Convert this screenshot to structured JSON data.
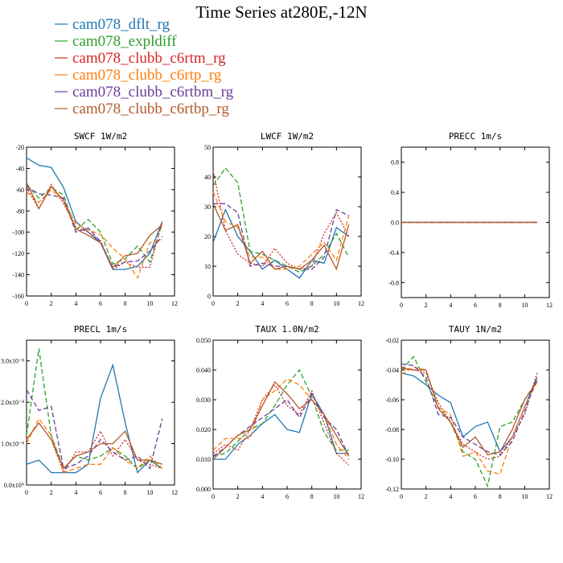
{
  "figure": {
    "title": "Time Series at280E,-12N"
  },
  "legend": [
    {
      "name": "cam078_dflt_rg",
      "color": "#1f77b4",
      "dash": "solid"
    },
    {
      "name": "cam078_expldiff",
      "color": "#2ca02c",
      "dash": "dash"
    },
    {
      "name": "cam078_clubb_c6rtm_rg",
      "color": "#d62728",
      "dash": "dot"
    },
    {
      "name": "cam078_clubb_c6rtp_rg",
      "color": "#ff7f0e",
      "dash": "dash"
    },
    {
      "name": "cam078_clubb_c6rtbm_rg",
      "color": "#6a3d9a",
      "dash": "dash"
    },
    {
      "name": "cam078_clubb_c6rtbp_rg",
      "color": "#b35a2b",
      "dash": "solid"
    }
  ],
  "chart_data": [
    {
      "type": "line",
      "title": "SWCF   1W/m2",
      "x": [
        0,
        1,
        2,
        3,
        4,
        5,
        6,
        7,
        8,
        9,
        10,
        11
      ],
      "xlim": [
        0,
        12
      ],
      "ylim": [
        -160,
        -20
      ],
      "xticks": [
        "0",
        "2",
        "4",
        "6",
        "8",
        "10",
        "12"
      ],
      "yticks": [
        "-160",
        "-140",
        "-120",
        "-100",
        "-80",
        "-60",
        "-40",
        "-20"
      ],
      "series": [
        {
          "name": "cam078_dflt_rg",
          "values": [
            -30,
            -37,
            -39,
            -58,
            -90,
            -100,
            -110,
            -135,
            -135,
            -132,
            -120,
            -90
          ]
        },
        {
          "name": "cam078_expldiff",
          "values": [
            -55,
            -68,
            -58,
            -65,
            -98,
            -88,
            -100,
            -130,
            -125,
            -113,
            -128,
            -92
          ]
        },
        {
          "name": "cam078_clubb_c6rtm_rg",
          "values": [
            -58,
            -78,
            -55,
            -73,
            -95,
            -100,
            -108,
            -135,
            -128,
            -133,
            -133,
            -90
          ]
        },
        {
          "name": "cam078_clubb_c6rtp_rg",
          "values": [
            -62,
            -72,
            -60,
            -70,
            -92,
            -98,
            -102,
            -115,
            -125,
            -143,
            -110,
            -107
          ]
        },
        {
          "name": "cam078_clubb_c6rtbm_rg",
          "values": [
            -57,
            -64,
            -65,
            -68,
            -100,
            -96,
            -109,
            -133,
            -128,
            -127,
            -118,
            -104
          ]
        },
        {
          "name": "cam078_clubb_c6rtbp_rg",
          "values": [
            -53,
            -78,
            -57,
            -70,
            -97,
            -103,
            -110,
            -133,
            -122,
            -120,
            -103,
            -93
          ]
        }
      ]
    },
    {
      "type": "line",
      "title": "LWCF   1W/m2",
      "x": [
        0,
        1,
        2,
        3,
        4,
        5,
        6,
        7,
        8,
        9,
        10,
        11
      ],
      "xlim": [
        0,
        12
      ],
      "ylim": [
        0,
        50
      ],
      "xticks": [
        "0",
        "2",
        "4",
        "6",
        "8",
        "10",
        "12"
      ],
      "yticks": [
        "0",
        "10",
        "20",
        "30",
        "40",
        "50"
      ],
      "series": [
        {
          "name": "cam078_dflt_rg",
          "values": [
            18,
            29,
            20,
            15,
            9,
            12,
            9,
            6,
            12,
            11,
            23,
            20
          ]
        },
        {
          "name": "cam078_expldiff",
          "values": [
            37,
            43,
            38,
            15,
            14,
            12,
            10,
            8,
            10,
            14,
            21,
            13
          ]
        },
        {
          "name": "cam078_clubb_c6rtm_rg",
          "values": [
            42,
            22,
            14,
            11,
            10,
            16,
            11,
            9,
            10,
            21,
            28,
            20
          ]
        },
        {
          "name": "cam078_clubb_c6rtp_rg",
          "values": [
            35,
            25,
            23,
            13,
            13,
            9,
            9,
            10,
            14,
            18,
            12,
            27
          ]
        },
        {
          "name": "cam078_clubb_c6rtbm_rg",
          "values": [
            31,
            31,
            28,
            10,
            11,
            10,
            10,
            9,
            9,
            13,
            29,
            27
          ]
        },
        {
          "name": "cam078_clubb_c6rtbp_rg",
          "values": [
            31,
            22,
            24,
            11,
            15,
            9,
            10,
            9,
            12,
            17,
            9,
            24
          ]
        }
      ]
    },
    {
      "type": "line",
      "title": "PRECC   1m/s",
      "x": [
        0,
        1,
        2,
        3,
        4,
        5,
        6,
        7,
        8,
        9,
        10,
        11
      ],
      "xlim": [
        0,
        12
      ],
      "ylim": [
        -1,
        1
      ],
      "xticks": [
        "0",
        "2",
        "4",
        "6",
        "8",
        "10",
        "12"
      ],
      "yticks": [
        "-0.8",
        "-0.4",
        "0.0",
        "0.4",
        "0.8"
      ],
      "series": [
        {
          "name": "cam078_dflt_rg",
          "values": [
            0,
            0,
            0,
            0,
            0,
            0,
            0,
            0,
            0,
            0,
            0,
            0
          ]
        },
        {
          "name": "cam078_expldiff",
          "values": [
            0,
            0,
            0,
            0,
            0,
            0,
            0,
            0,
            0,
            0,
            0,
            0
          ]
        },
        {
          "name": "cam078_clubb_c6rtm_rg",
          "values": [
            0,
            0,
            0,
            0,
            0,
            0,
            0,
            0,
            0,
            0,
            0,
            0
          ]
        },
        {
          "name": "cam078_clubb_c6rtp_rg",
          "values": [
            0,
            0,
            0,
            0,
            0,
            0,
            0,
            0,
            0,
            0,
            0,
            0
          ]
        },
        {
          "name": "cam078_clubb_c6rtbm_rg",
          "values": [
            0,
            0,
            0,
            0,
            0,
            0,
            0,
            0,
            0,
            0,
            0,
            0
          ]
        },
        {
          "name": "cam078_clubb_c6rtbp_rg",
          "values": [
            0,
            0,
            0,
            0,
            0,
            0,
            0,
            0,
            0,
            0,
            0,
            0
          ]
        }
      ]
    },
    {
      "type": "line",
      "title": "PRECL   1m/s",
      "x": [
        0,
        1,
        2,
        3,
        4,
        5,
        6,
        7,
        8,
        9,
        10,
        11
      ],
      "xlim": [
        0,
        12
      ],
      "ylim": [
        0,
        3.5e-08
      ],
      "xticks": [
        "0",
        "2",
        "4",
        "6",
        "8",
        "10",
        "12"
      ],
      "yticks": [
        "0.0x10⁰",
        "1.0x10⁻⁸",
        "2.0x10⁻⁸",
        "3.0x10⁻⁸"
      ],
      "series": [
        {
          "name": "cam078_dflt_rg",
          "values": [
            5e-09,
            6e-09,
            3e-09,
            3e-09,
            3e-09,
            5e-09,
            2.1e-08,
            2.9e-08,
            1.5e-08,
            3e-09,
            6e-09,
            4e-09
          ]
        },
        {
          "name": "cam078_expldiff",
          "values": [
            1.2e-08,
            3.3e-08,
            1.2e-08,
            4e-09,
            7e-09,
            6e-09,
            7e-09,
            9e-09,
            7e-09,
            4e-09,
            6e-09,
            4e-09
          ]
        },
        {
          "name": "cam078_clubb_c6rtm_rg",
          "values": [
            1.1e-08,
            1.5e-08,
            1.1e-08,
            3e-09,
            8e-09,
            8e-09,
            1.3e-08,
            7e-09,
            1.1e-08,
            6e-09,
            5e-09,
            4e-09
          ]
        },
        {
          "name": "cam078_clubb_c6rtp_rg",
          "values": [
            1e-08,
            1.6e-08,
            1.2e-08,
            3e-09,
            4e-09,
            5e-09,
            5e-09,
            9e-09,
            6e-09,
            4e-09,
            7e-09,
            4e-09
          ]
        },
        {
          "name": "cam078_clubb_c6rtbm_rg",
          "values": [
            2.3e-08,
            1.8e-08,
            1.9e-08,
            4e-09,
            5e-09,
            7e-09,
            1.1e-08,
            8e-09,
            6e-09,
            7e-09,
            4e-09,
            1.6e-08
          ]
        },
        {
          "name": "cam078_clubb_c6rtbp_rg",
          "values": [
            1.1e-08,
            1.5e-08,
            1.1e-08,
            4e-09,
            7e-09,
            8e-09,
            1e-08,
            1e-08,
            1.3e-08,
            6e-09,
            6e-09,
            5e-09
          ]
        }
      ]
    },
    {
      "type": "line",
      "title": "TAUX   1.0N/m2",
      "x": [
        0,
        1,
        2,
        3,
        4,
        5,
        6,
        7,
        8,
        9,
        10,
        11
      ],
      "xlim": [
        0,
        12
      ],
      "ylim": [
        0,
        0.05
      ],
      "xticks": [
        "0",
        "2",
        "4",
        "6",
        "8",
        "10",
        "12"
      ],
      "yticks": [
        "0.000",
        "0.010",
        "0.020",
        "0.030",
        "0.040",
        "0.050"
      ],
      "series": [
        {
          "name": "cam078_dflt_rg",
          "values": [
            0.01,
            0.01,
            0.015,
            0.018,
            0.022,
            0.025,
            0.02,
            0.019,
            0.032,
            0.025,
            0.012,
            0.012
          ]
        },
        {
          "name": "cam078_expldiff",
          "values": [
            0.011,
            0.012,
            0.016,
            0.02,
            0.022,
            0.028,
            0.035,
            0.04,
            0.031,
            0.019,
            0.013,
            0.013
          ]
        },
        {
          "name": "cam078_clubb_c6rtm_rg",
          "values": [
            0.012,
            0.015,
            0.013,
            0.02,
            0.03,
            0.035,
            0.028,
            0.025,
            0.033,
            0.022,
            0.012,
            0.008
          ]
        },
        {
          "name": "cam078_clubb_c6rtp_rg",
          "values": [
            0.013,
            0.017,
            0.017,
            0.017,
            0.03,
            0.033,
            0.037,
            0.035,
            0.03,
            0.025,
            0.015,
            0.01
          ]
        },
        {
          "name": "cam078_clubb_c6rtbm_rg",
          "values": [
            0.011,
            0.014,
            0.018,
            0.021,
            0.024,
            0.027,
            0.03,
            0.024,
            0.032,
            0.024,
            0.02,
            0.011
          ]
        },
        {
          "name": "cam078_clubb_c6rtbp_rg",
          "values": [
            0.01,
            0.014,
            0.018,
            0.02,
            0.028,
            0.036,
            0.032,
            0.027,
            0.03,
            0.025,
            0.018,
            0.011
          ]
        }
      ]
    },
    {
      "type": "line",
      "title": "TAUY   1N/m2",
      "x": [
        0,
        1,
        2,
        3,
        4,
        5,
        6,
        7,
        8,
        9,
        10,
        11
      ],
      "xlim": [
        0,
        12
      ],
      "ylim": [
        -0.12,
        -0.02
      ],
      "xticks": [
        "0",
        "2",
        "4",
        "6",
        "8",
        "10",
        "12"
      ],
      "yticks": [
        "-0.12",
        "-0.10",
        "-0.08",
        "-0.06",
        "-0.04",
        "-0.02"
      ],
      "series": [
        {
          "name": "cam078_dflt_rg",
          "values": [
            -0.042,
            -0.044,
            -0.05,
            -0.057,
            -0.062,
            -0.085,
            -0.078,
            -0.075,
            -0.095,
            -0.085,
            -0.065,
            -0.045
          ]
        },
        {
          "name": "cam078_expldiff",
          "values": [
            -0.04,
            -0.031,
            -0.048,
            -0.065,
            -0.075,
            -0.095,
            -0.1,
            -0.118,
            -0.078,
            -0.075,
            -0.06,
            -0.047
          ]
        },
        {
          "name": "cam078_clubb_c6rtm_rg",
          "values": [
            -0.038,
            -0.04,
            -0.042,
            -0.062,
            -0.075,
            -0.09,
            -0.095,
            -0.1,
            -0.098,
            -0.085,
            -0.07,
            -0.042
          ]
        },
        {
          "name": "cam078_clubb_c6rtp_rg",
          "values": [
            -0.043,
            -0.038,
            -0.04,
            -0.065,
            -0.07,
            -0.098,
            -0.095,
            -0.108,
            -0.11,
            -0.085,
            -0.065,
            -0.048
          ]
        },
        {
          "name": "cam078_clubb_c6rtbm_rg",
          "values": [
            -0.036,
            -0.037,
            -0.045,
            -0.07,
            -0.072,
            -0.085,
            -0.09,
            -0.095,
            -0.097,
            -0.088,
            -0.068,
            -0.045
          ]
        },
        {
          "name": "cam078_clubb_c6rtbp_rg",
          "values": [
            -0.039,
            -0.04,
            -0.04,
            -0.066,
            -0.075,
            -0.092,
            -0.085,
            -0.097,
            -0.095,
            -0.08,
            -0.06,
            -0.048
          ]
        }
      ]
    }
  ]
}
